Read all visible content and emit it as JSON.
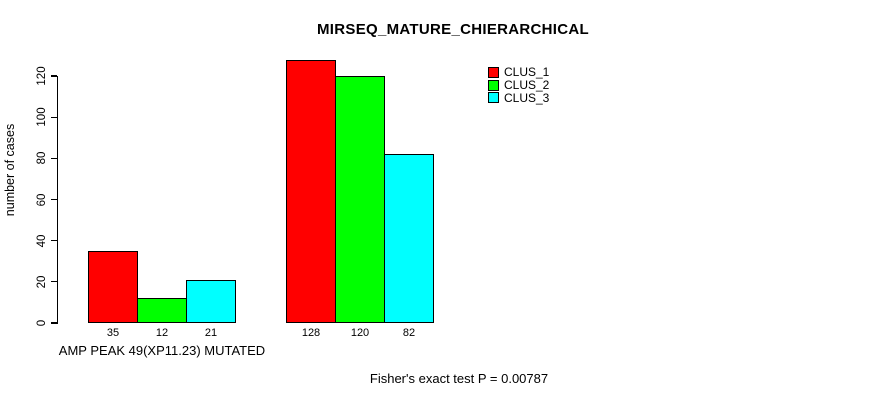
{
  "chart_data": {
    "type": "bar",
    "title": "MIRSEQ_MATURE_CHIERARCHICAL",
    "ylabel": "number of cases",
    "xlabel": "",
    "yticks": [
      0,
      20,
      40,
      60,
      80,
      100,
      120
    ],
    "ylim": [
      0,
      128
    ],
    "categories": [
      "AMP PEAK 49(XP11.23) MUTATED",
      ""
    ],
    "series": [
      {
        "name": "CLUS_1",
        "color": "#FF0000",
        "values": [
          35,
          128
        ]
      },
      {
        "name": "CLUS_2",
        "color": "#00FF00",
        "values": [
          12,
          120
        ]
      },
      {
        "name": "CLUS_3",
        "color": "#00FFFF",
        "values": [
          21,
          82
        ]
      }
    ],
    "bar_value_labels": [
      [
        "35",
        "12",
        "21"
      ],
      [
        "128",
        "120",
        "82"
      ]
    ],
    "annotation": "Fisher's exact test P = 0.00787",
    "legend_position": "top-right",
    "grid": false,
    "background_color": "#FFFFFF",
    "axis_color": "#000000"
  }
}
